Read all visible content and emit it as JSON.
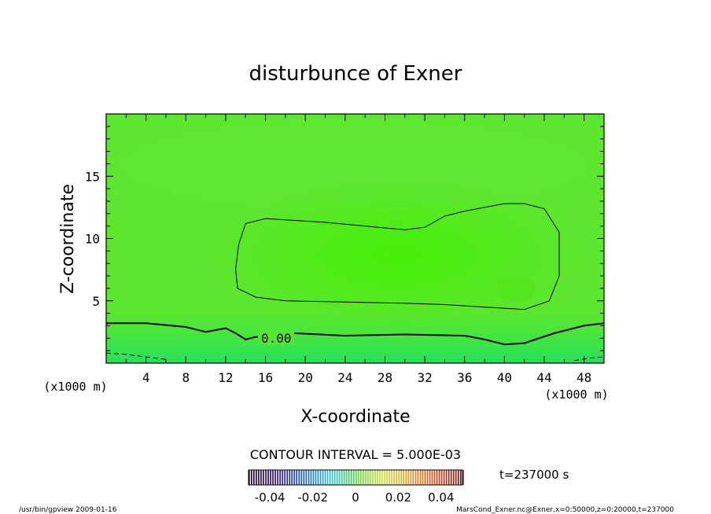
{
  "chart_data": {
    "type": "contour",
    "title": "disturbunce of Exner",
    "xlabel": "X-coordinate",
    "ylabel": "Z-coordinate",
    "x_unit": "(x1000 m)",
    "z_unit": "(x1000 m)",
    "xlim": [
      0,
      50
    ],
    "ylim": [
      0,
      20
    ],
    "x_ticks": [
      4,
      8,
      12,
      16,
      20,
      24,
      28,
      32,
      36,
      40,
      44,
      48
    ],
    "y_ticks": [
      5,
      10,
      15
    ],
    "contour_interval_text": "CONTOUR INTERVAL = 5.000E-03",
    "contour_label": "0.00",
    "colorbar_ticks": [
      "-0.04",
      "-0.02",
      "0",
      "0.02",
      "0.04"
    ],
    "colorbar_range": [
      -0.05,
      0.05
    ],
    "contours": [
      {
        "level": 0.0,
        "style": "solid-bold",
        "points": [
          [
            0,
            3.2
          ],
          [
            4,
            3.2
          ],
          [
            8,
            2.9
          ],
          [
            10,
            2.5
          ],
          [
            12,
            2.8
          ],
          [
            13,
            2.4
          ],
          [
            14,
            1.9
          ],
          [
            15,
            2.1
          ],
          [
            16.5,
            2.1
          ],
          [
            19,
            2.4
          ],
          [
            24,
            2.2
          ],
          [
            30,
            2.3
          ],
          [
            36,
            2.2
          ],
          [
            38,
            1.9
          ],
          [
            40,
            1.5
          ],
          [
            42,
            1.6
          ],
          [
            45,
            2.4
          ],
          [
            48,
            3.0
          ],
          [
            50,
            3.2
          ]
        ]
      },
      {
        "level": 0.005,
        "style": "solid-thin",
        "closed": true,
        "points": [
          [
            14,
            11.2
          ],
          [
            16,
            11.6
          ],
          [
            18,
            11.5
          ],
          [
            22,
            11.3
          ],
          [
            26,
            11.0
          ],
          [
            30,
            10.7
          ],
          [
            32,
            10.9
          ],
          [
            34,
            11.8
          ],
          [
            36,
            12.2
          ],
          [
            38,
            12.5
          ],
          [
            40,
            12.8
          ],
          [
            42,
            12.8
          ],
          [
            44,
            12.4
          ],
          [
            45.5,
            10.5
          ],
          [
            45.5,
            7.0
          ],
          [
            44.5,
            5.0
          ],
          [
            42,
            4.3
          ],
          [
            38,
            4.5
          ],
          [
            34,
            4.7
          ],
          [
            30,
            4.8
          ],
          [
            24,
            4.9
          ],
          [
            18,
            5.0
          ],
          [
            15,
            5.3
          ],
          [
            13.2,
            6.0
          ],
          [
            13,
            7.5
          ],
          [
            13.3,
            9.5
          ],
          [
            14,
            11.2
          ]
        ]
      },
      {
        "level": -0.005,
        "style": "dashed",
        "points": [
          [
            0,
            0.8
          ],
          [
            2,
            0.7
          ],
          [
            4,
            0.5
          ],
          [
            6,
            0.3
          ]
        ]
      },
      {
        "level": -0.005,
        "style": "dashed",
        "points": [
          [
            47,
            0.2
          ],
          [
            48.5,
            0.4
          ],
          [
            50,
            0.5
          ]
        ]
      }
    ],
    "annotations": [
      "t=237000 s"
    ]
  },
  "footer": {
    "left": "/usr/bin/gpview  2009-01-16",
    "right": "MarsCond_Exner.nc@Exner,x=0:50000,z=0:20000,t=237000"
  }
}
